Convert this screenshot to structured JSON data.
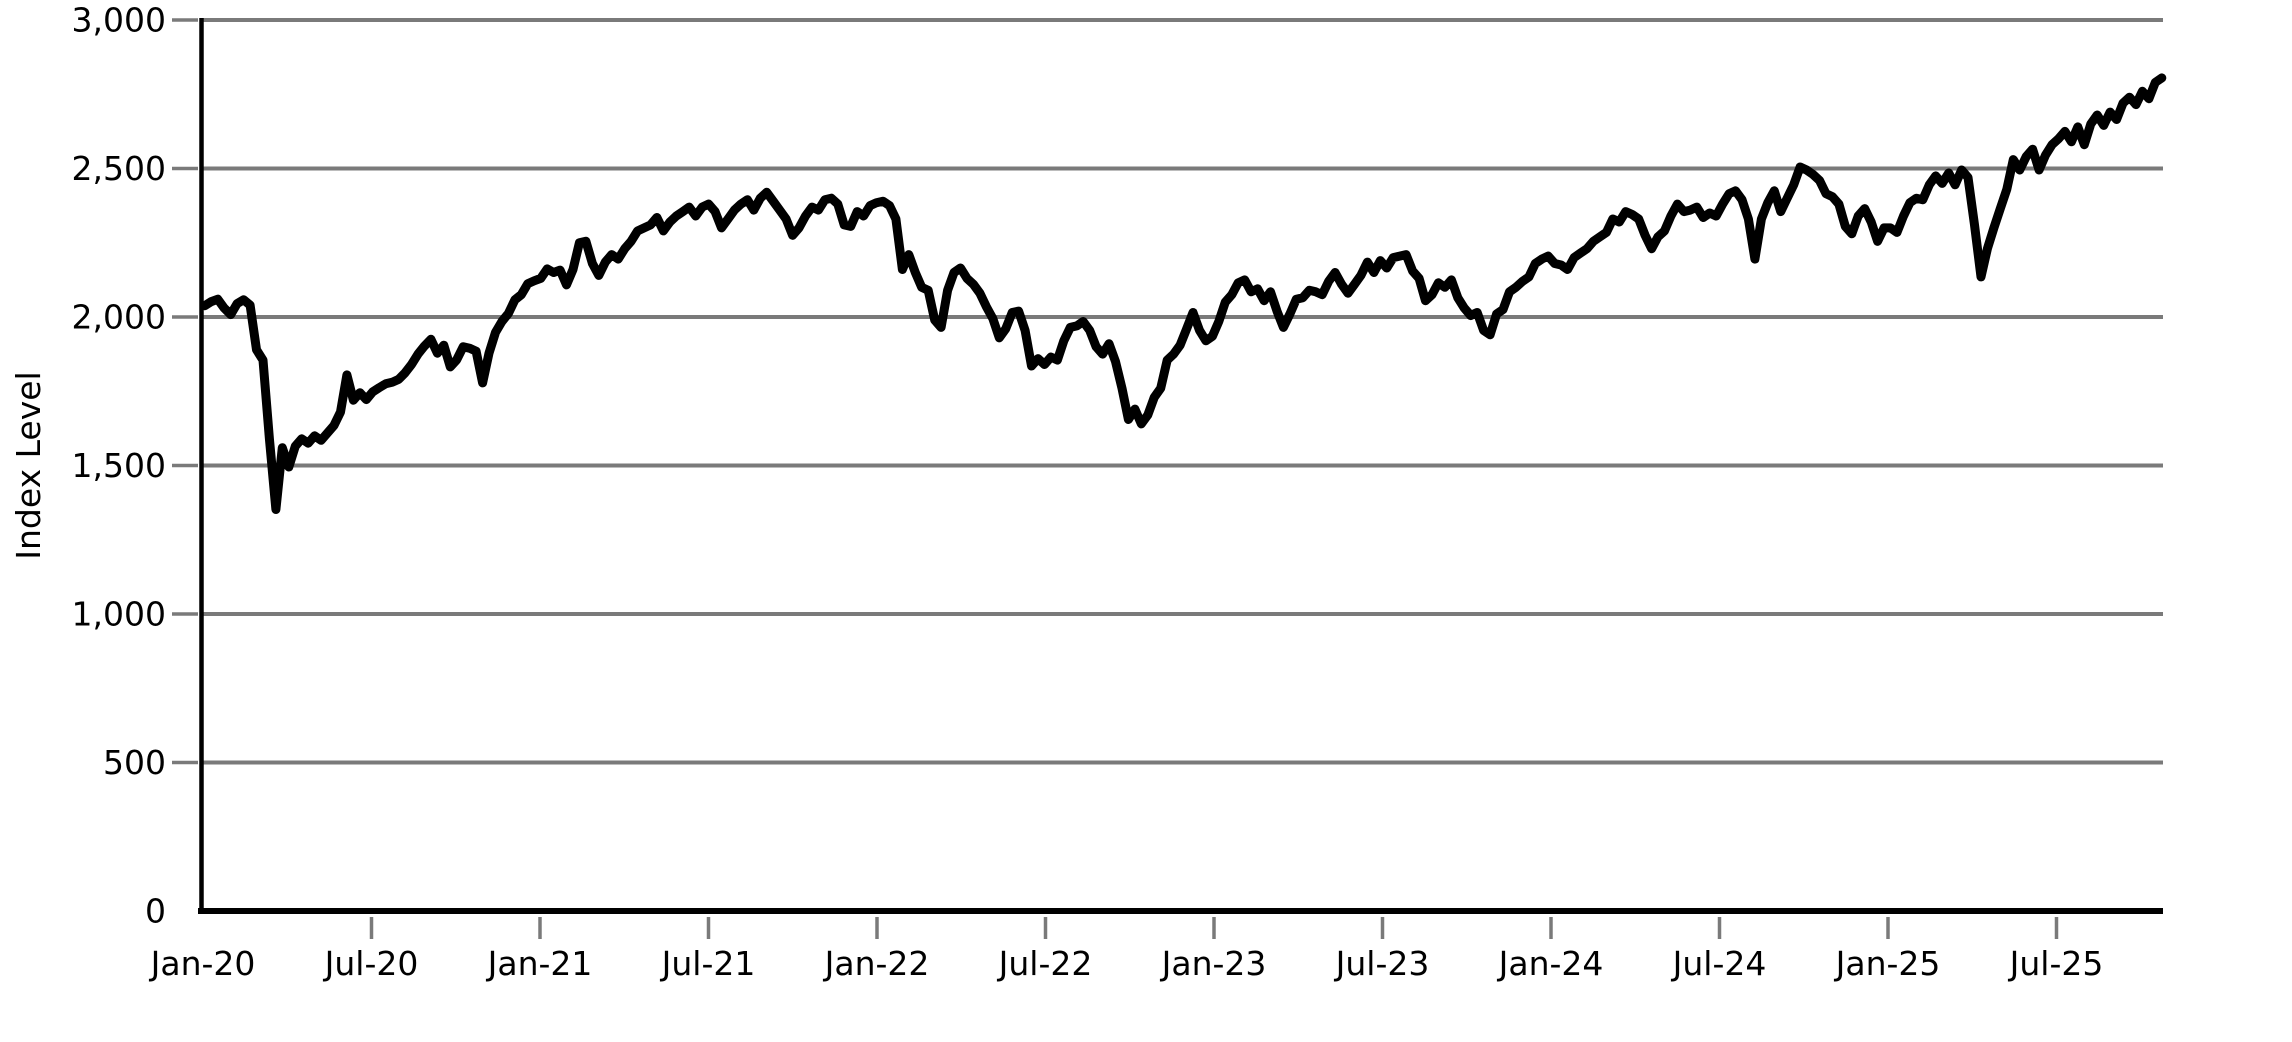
{
  "chart_data": {
    "type": "line",
    "title": "",
    "xlabel": "",
    "ylabel": "Index Level",
    "ylim": [
      0,
      3000
    ],
    "grid": "horizontal",
    "legend_position": "none",
    "colors": {
      "line": "#000000",
      "grid": "#7a7a7a",
      "tick": "#7a7a7a",
      "axis": "#000000",
      "background": "#ffffff",
      "text": "#000000"
    },
    "yticks": [
      {
        "value": 0,
        "label": "0",
        "tick_visible": false,
        "gridline": false
      },
      {
        "value": 500,
        "label": "500",
        "tick_visible": true,
        "gridline": true
      },
      {
        "value": 1000,
        "label": "1,000",
        "tick_visible": true,
        "gridline": true
      },
      {
        "value": 1500,
        "label": "1,500",
        "tick_visible": true,
        "gridline": true
      },
      {
        "value": 2000,
        "label": "2,000",
        "tick_visible": true,
        "gridline": true
      },
      {
        "value": 2500,
        "label": "2,500",
        "tick_visible": true,
        "gridline": true
      },
      {
        "value": 3000,
        "label": "3,000",
        "tick_visible": true,
        "gridline": true
      }
    ],
    "xticks": [
      {
        "label": "Jan-20",
        "year": 2020,
        "month": 1,
        "tick_visible": false
      },
      {
        "label": "Jul-20",
        "year": 2020,
        "month": 7,
        "tick_visible": true
      },
      {
        "label": "Jan-21",
        "year": 2021,
        "month": 1,
        "tick_visible": true
      },
      {
        "label": "Jul-21",
        "year": 2021,
        "month": 7,
        "tick_visible": true
      },
      {
        "label": "Jan-22",
        "year": 2022,
        "month": 1,
        "tick_visible": true
      },
      {
        "label": "Jul-22",
        "year": 2022,
        "month": 7,
        "tick_visible": true
      },
      {
        "label": "Jan-23",
        "year": 2023,
        "month": 1,
        "tick_visible": true
      },
      {
        "label": "Jul-23",
        "year": 2023,
        "month": 7,
        "tick_visible": true
      },
      {
        "label": "Jan-24",
        "year": 2024,
        "month": 1,
        "tick_visible": true
      },
      {
        "label": "Jul-24",
        "year": 2024,
        "month": 7,
        "tick_visible": true
      },
      {
        "label": "Jan-25",
        "year": 2025,
        "month": 1,
        "tick_visible": true
      },
      {
        "label": "Jul-25",
        "year": 2025,
        "month": 7,
        "tick_visible": true
      }
    ],
    "series": [
      {
        "name": "Index Level",
        "start_date": "2020-01-03",
        "frequency_days": 7,
        "values": [
          2038,
          2052,
          2060,
          2030,
          2008,
          2045,
          2058,
          2040,
          1890,
          1855,
          1590,
          1352,
          1560,
          1495,
          1565,
          1590,
          1575,
          1600,
          1585,
          1610,
          1635,
          1680,
          1805,
          1720,
          1745,
          1722,
          1748,
          1762,
          1775,
          1780,
          1790,
          1812,
          1840,
          1875,
          1902,
          1925,
          1878,
          1905,
          1832,
          1856,
          1900,
          1895,
          1885,
          1778,
          1878,
          1948,
          1985,
          2012,
          2058,
          2075,
          2112,
          2122,
          2130,
          2162,
          2150,
          2158,
          2108,
          2160,
          2250,
          2255,
          2180,
          2140,
          2185,
          2210,
          2195,
          2230,
          2255,
          2290,
          2300,
          2310,
          2335,
          2290,
          2320,
          2340,
          2355,
          2370,
          2340,
          2370,
          2380,
          2355,
          2300,
          2330,
          2360,
          2380,
          2395,
          2360,
          2400,
          2420,
          2390,
          2360,
          2330,
          2275,
          2300,
          2340,
          2370,
          2360,
          2395,
          2400,
          2380,
          2310,
          2305,
          2355,
          2340,
          2375,
          2385,
          2390,
          2375,
          2330,
          2160,
          2210,
          2150,
          2100,
          2090,
          1990,
          1965,
          2090,
          2150,
          2165,
          2130,
          2110,
          2080,
          2035,
          1995,
          1930,
          1960,
          2015,
          2020,
          1955,
          1835,
          1860,
          1840,
          1865,
          1855,
          1920,
          1965,
          1970,
          1985,
          1955,
          1900,
          1875,
          1910,
          1850,
          1760,
          1655,
          1690,
          1640,
          1670,
          1730,
          1760,
          1855,
          1875,
          1905,
          1960,
          2015,
          1955,
          1920,
          1935,
          1985,
          2050,
          2075,
          2115,
          2125,
          2085,
          2095,
          2055,
          2085,
          2020,
          1965,
          2010,
          2060,
          2065,
          2090,
          2085,
          2075,
          2120,
          2150,
          2110,
          2080,
          2110,
          2140,
          2185,
          2150,
          2190,
          2165,
          2200,
          2205,
          2210,
          2155,
          2130,
          2055,
          2075,
          2115,
          2100,
          2125,
          2065,
          2030,
          2005,
          2015,
          1955,
          1940,
          2010,
          2025,
          2085,
          2100,
          2120,
          2135,
          2180,
          2195,
          2205,
          2180,
          2175,
          2160,
          2200,
          2215,
          2230,
          2255,
          2270,
          2285,
          2330,
          2320,
          2355,
          2345,
          2330,
          2275,
          2230,
          2270,
          2290,
          2340,
          2380,
          2355,
          2360,
          2370,
          2335,
          2350,
          2340,
          2380,
          2415,
          2425,
          2395,
          2330,
          2195,
          2330,
          2385,
          2425,
          2355,
          2400,
          2445,
          2505,
          2495,
          2480,
          2460,
          2415,
          2405,
          2380,
          2305,
          2280,
          2340,
          2365,
          2320,
          2255,
          2300,
          2300,
          2285,
          2340,
          2385,
          2400,
          2395,
          2445,
          2475,
          2450,
          2485,
          2445,
          2495,
          2470,
          2310,
          2135,
          2230,
          2300,
          2365,
          2430,
          2530,
          2495,
          2540,
          2565,
          2495,
          2545,
          2580,
          2600,
          2625,
          2590,
          2640,
          2580,
          2650,
          2680,
          2645,
          2690,
          2665,
          2720,
          2740,
          2715,
          2760,
          2735,
          2790,
          2805
        ]
      }
    ]
  }
}
